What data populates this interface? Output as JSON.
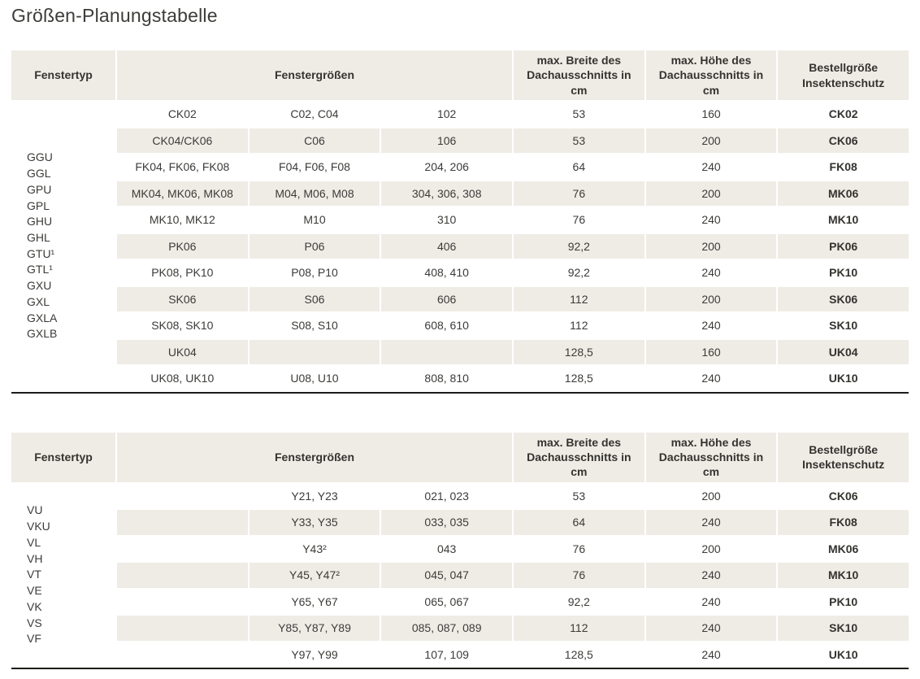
{
  "page": {
    "title": "Größen-Planungstabelle"
  },
  "colors": {
    "row_shade": "#efece6",
    "table_rule": "#1d1c1a",
    "text": "#3c3b38"
  },
  "tables": [
    {
      "columns": {
        "fenstertyp": "Fenstertyp",
        "fenstergroessen": "Fenstergrößen",
        "max_breite": "max. Breite des Dachausschnitts in cm",
        "max_hoehe": "max. Höhe des Dachausschnitts in cm",
        "bestellgroesse": "Bestellgröße Insektenschutz"
      },
      "fenstertyp_values": [
        "GGU",
        "GGL",
        "GPU",
        "GPL",
        "GHU",
        "GHL",
        "GTU¹",
        "GTL¹",
        "GXU",
        "GXL",
        "GXLA",
        "GXLB"
      ],
      "rows": [
        {
          "groessen": [
            "CK02",
            "C02, C04",
            "102"
          ],
          "max_breite": "53",
          "max_hoehe": "160",
          "bestellgroesse": "CK02"
        },
        {
          "groessen": [
            "CK04/CK06",
            "C06",
            "106"
          ],
          "max_breite": "53",
          "max_hoehe": "200",
          "bestellgroesse": "CK06"
        },
        {
          "groessen": [
            "FK04, FK06, FK08",
            "F04, F06, F08",
            "204, 206"
          ],
          "max_breite": "64",
          "max_hoehe": "240",
          "bestellgroesse": "FK08"
        },
        {
          "groessen": [
            "MK04, MK06, MK08",
            "M04, M06, M08",
            "304, 306, 308"
          ],
          "max_breite": "76",
          "max_hoehe": "200",
          "bestellgroesse": "MK06"
        },
        {
          "groessen": [
            "MK10, MK12",
            "M10",
            "310"
          ],
          "max_breite": "76",
          "max_hoehe": "240",
          "bestellgroesse": "MK10"
        },
        {
          "groessen": [
            "PK06",
            "P06",
            "406"
          ],
          "max_breite": "92,2",
          "max_hoehe": "200",
          "bestellgroesse": "PK06"
        },
        {
          "groessen": [
            "PK08, PK10",
            "P08, P10",
            "408, 410"
          ],
          "max_breite": "92,2",
          "max_hoehe": "240",
          "bestellgroesse": "PK10"
        },
        {
          "groessen": [
            "SK06",
            "S06",
            "606"
          ],
          "max_breite": "112",
          "max_hoehe": "200",
          "bestellgroesse": "SK06"
        },
        {
          "groessen": [
            "SK08, SK10",
            "S08, S10",
            "608, 610"
          ],
          "max_breite": "112",
          "max_hoehe": "240",
          "bestellgroesse": "SK10"
        },
        {
          "groessen": [
            "UK04",
            "",
            ""
          ],
          "max_breite": "128,5",
          "max_hoehe": "160",
          "bestellgroesse": "UK04"
        },
        {
          "groessen": [
            "UK08, UK10",
            "U08, U10",
            "808, 810"
          ],
          "max_breite": "128,5",
          "max_hoehe": "240",
          "bestellgroesse": "UK10"
        }
      ]
    },
    {
      "columns": {
        "fenstertyp": "Fenstertyp",
        "fenstergroessen": "Fenstergrößen",
        "max_breite": "max. Breite des Dachausschnitts in cm",
        "max_hoehe": "max. Höhe des Dachausschnitts in cm",
        "bestellgroesse": "Bestellgröße Insektenschutz"
      },
      "fenstertyp_values": [
        "VU",
        "VKU",
        "VL",
        "VH",
        "VT",
        "VE",
        "VK",
        "VS",
        "VF"
      ],
      "rows": [
        {
          "groessen": [
            "",
            "Y21, Y23",
            "021, 023"
          ],
          "max_breite": "53",
          "max_hoehe": "200",
          "bestellgroesse": "CK06"
        },
        {
          "groessen": [
            "",
            "Y33, Y35",
            "033, 035"
          ],
          "max_breite": "64",
          "max_hoehe": "240",
          "bestellgroesse": "FK08"
        },
        {
          "groessen": [
            "",
            "Y43²",
            "043"
          ],
          "max_breite": "76",
          "max_hoehe": "200",
          "bestellgroesse": "MK06"
        },
        {
          "groessen": [
            "",
            "Y45, Y47²",
            "045, 047"
          ],
          "max_breite": "76",
          "max_hoehe": "240",
          "bestellgroesse": "MK10"
        },
        {
          "groessen": [
            "",
            "Y65, Y67",
            "065, 067"
          ],
          "max_breite": "92,2",
          "max_hoehe": "240",
          "bestellgroesse": "PK10"
        },
        {
          "groessen": [
            "",
            "Y85, Y87, Y89",
            "085, 087, 089"
          ],
          "max_breite": "112",
          "max_hoehe": "240",
          "bestellgroesse": "SK10"
        },
        {
          "groessen": [
            "",
            "Y97, Y99",
            "107, 109"
          ],
          "max_breite": "128,5",
          "max_hoehe": "240",
          "bestellgroesse": "UK10"
        }
      ]
    }
  ]
}
